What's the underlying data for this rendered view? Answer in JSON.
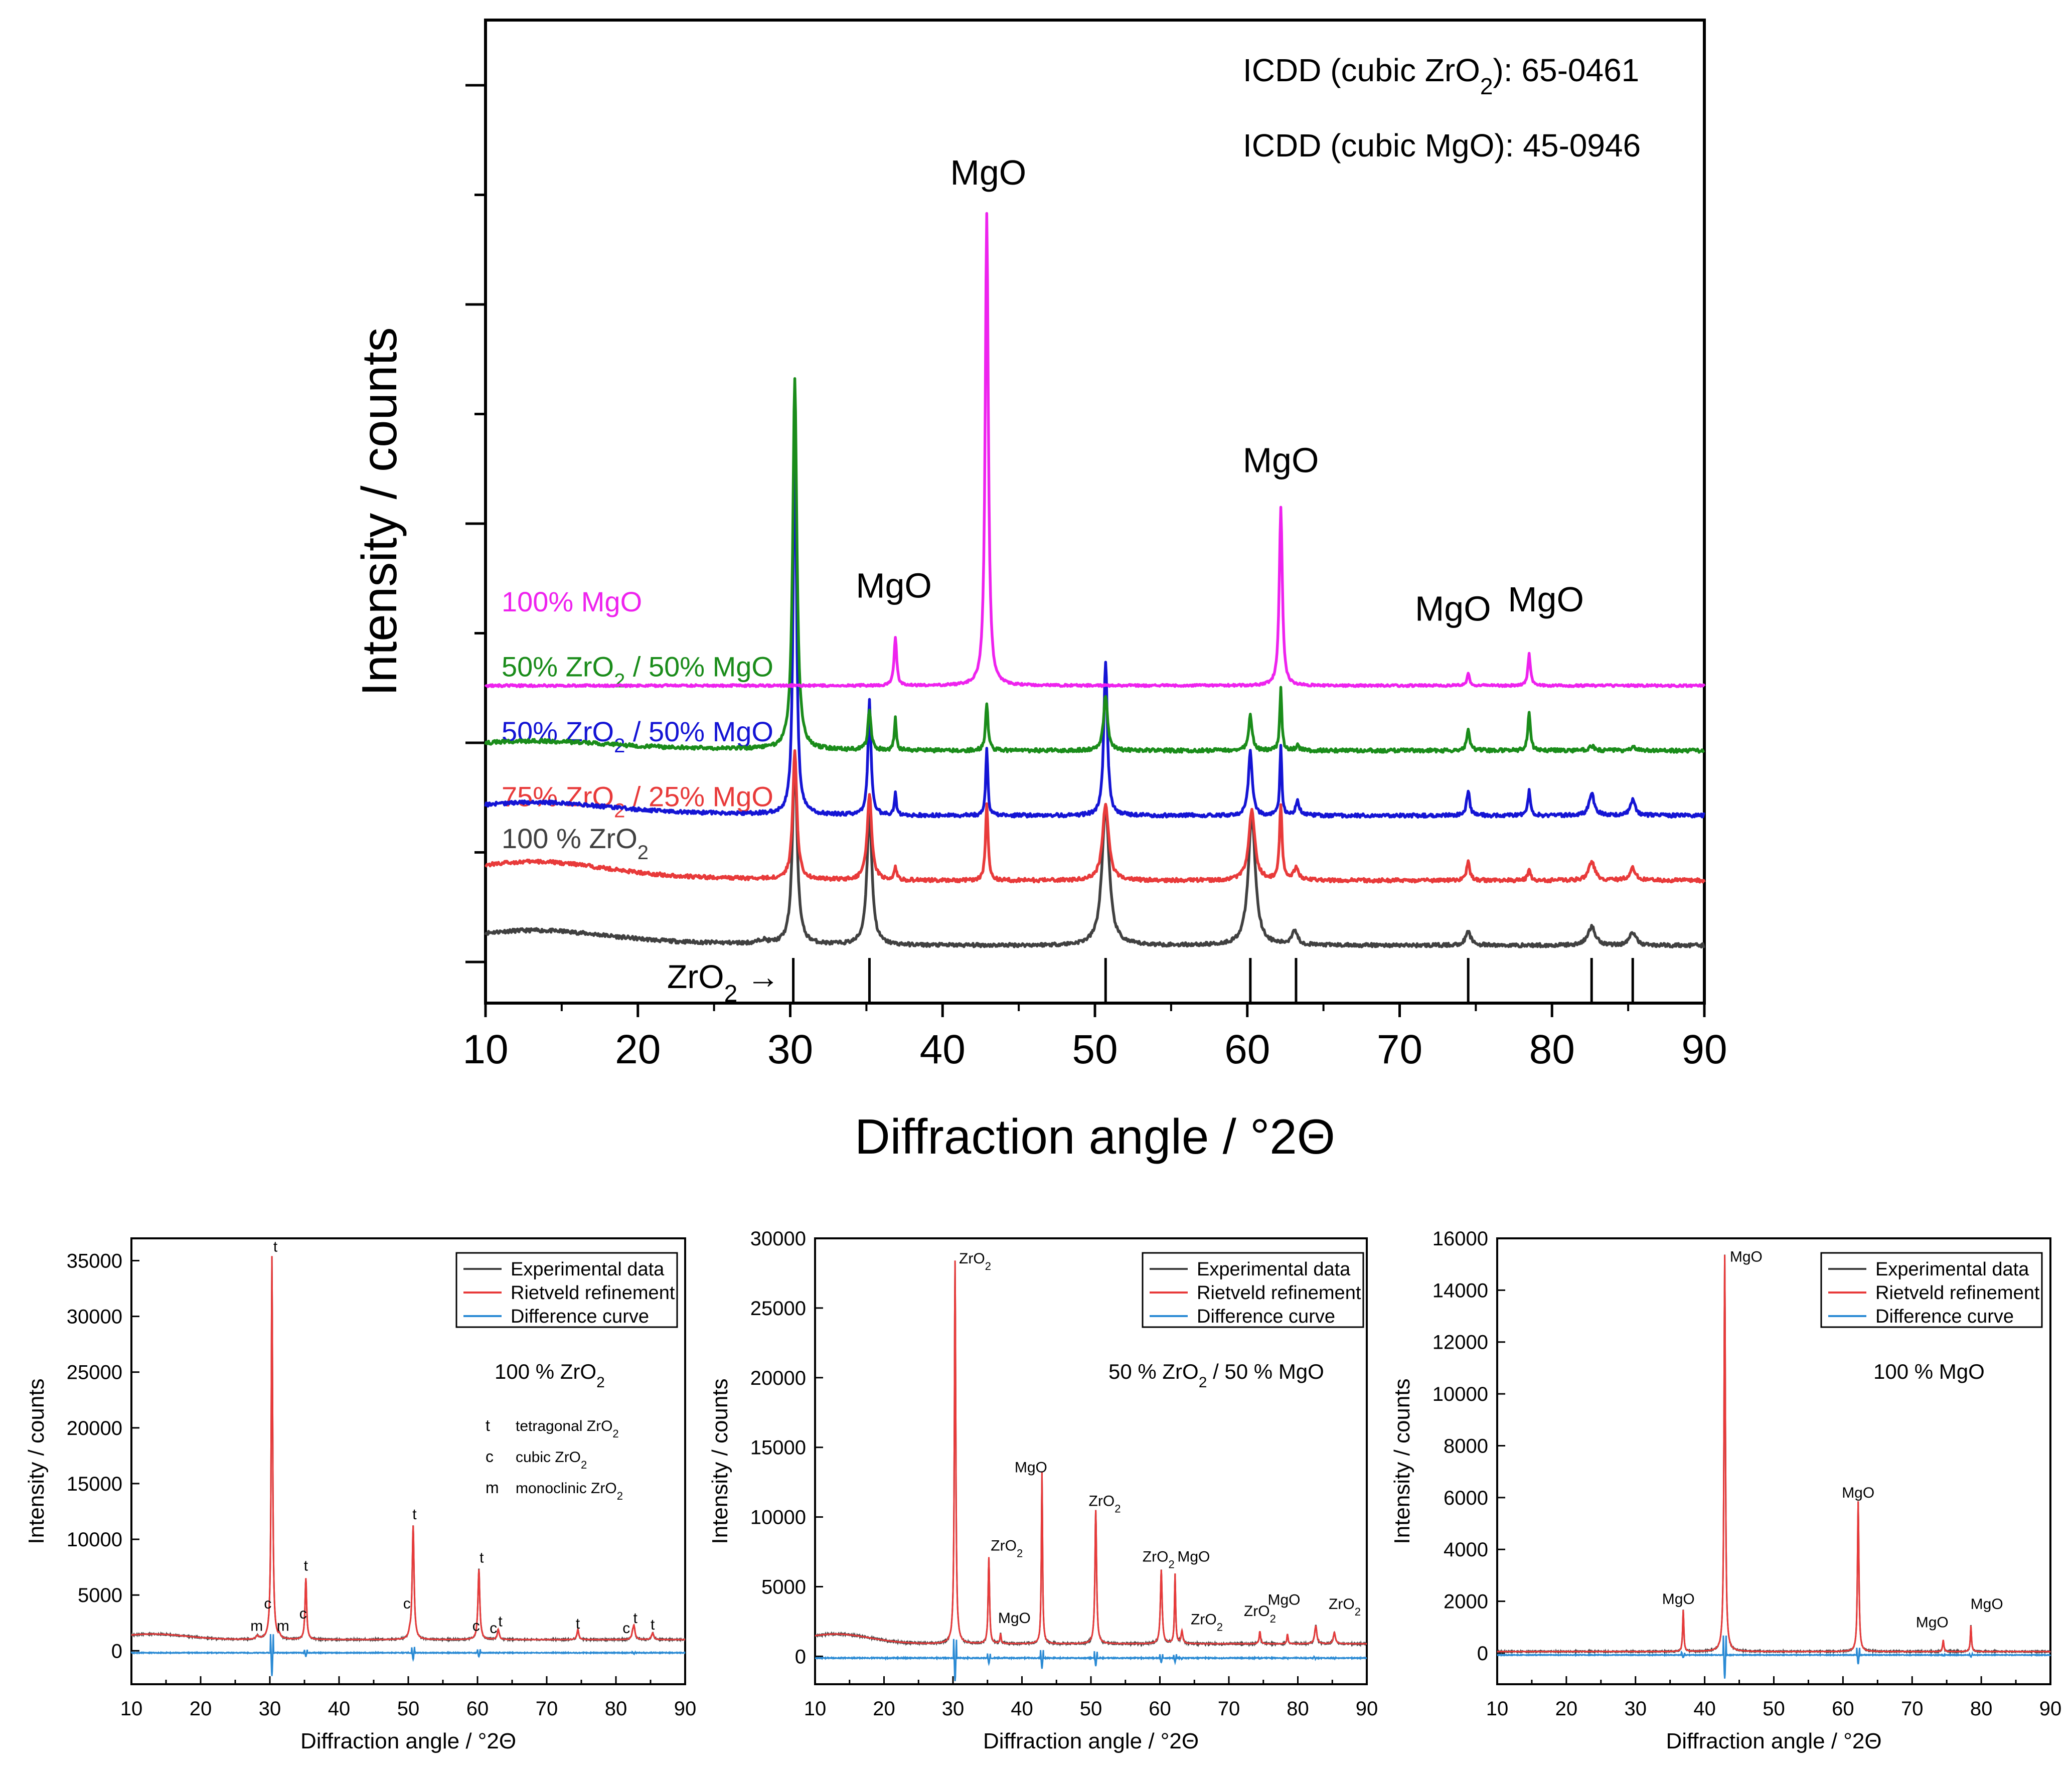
{
  "chart_data": [
    {
      "type": "line",
      "panel": "main",
      "title": "",
      "xlabel": "Diffraction angle / °2Θ",
      "ylabel": "Intensity / counts",
      "xlim": [
        10,
        90
      ],
      "xticks": [
        "10",
        "20",
        "30",
        "40",
        "50",
        "60",
        "70",
        "80",
        "90"
      ],
      "y_tick_labels_shown": false,
      "grid": false,
      "database_notes": [
        {
          "pre": "ICDD (cubic ZrO",
          "sub": "2",
          "post": "): 65-0461"
        },
        {
          "pre": "ICDD (cubic MgO):  45-0946",
          "sub": "",
          "post": ""
        }
      ],
      "reference_marker": {
        "label": "ZrO",
        "sub": "2",
        "arrow": "→",
        "positions": [
          30.2,
          35.2,
          50.7,
          60.2,
          63.2,
          74.5,
          82.6,
          85.3
        ]
      },
      "series": [
        {
          "name": "100 % ZrO",
          "sub": "2",
          "post": "",
          "color": "#404040",
          "baseline": 0,
          "label_y": 1.05,
          "hump": 0.16,
          "noise": 0.02,
          "peaks": [
            [
              28.2,
              0.04,
              0.3
            ],
            [
              30.3,
              2.03,
              0.18
            ],
            [
              35.2,
              1.42,
              0.2
            ],
            [
              50.7,
              1.51,
              0.28
            ],
            [
              60.3,
              1.39,
              0.28
            ],
            [
              63.1,
              0.16,
              0.22
            ],
            [
              74.5,
              0.14,
              0.22
            ],
            [
              82.6,
              0.2,
              0.3
            ],
            [
              85.3,
              0.14,
              0.25
            ]
          ]
        },
        {
          "name": "75% ZrO",
          "sub": "2",
          "post": " / 25% MgO",
          "color": "#e83a3a",
          "baseline": 0.7,
          "label_y": 1.5,
          "hump": 0.2,
          "noise": 0.02,
          "peaks": [
            [
              30.3,
              1.4,
              0.16
            ],
            [
              35.2,
              0.92,
              0.18
            ],
            [
              36.9,
              0.13,
              0.1
            ],
            [
              42.9,
              0.82,
              0.1
            ],
            [
              50.7,
              0.82,
              0.24
            ],
            [
              60.3,
              0.76,
              0.24
            ],
            [
              62.2,
              0.82,
              0.1
            ],
            [
              63.2,
              0.13,
              0.18
            ],
            [
              74.5,
              0.22,
              0.12
            ],
            [
              78.5,
              0.13,
              0.1
            ],
            [
              82.6,
              0.2,
              0.25
            ],
            [
              85.3,
              0.13,
              0.25
            ]
          ]
        },
        {
          "name": "50% ZrO",
          "sub": "2",
          "post": " / 50% MgO",
          "color": "#1414d4",
          "baseline": 1.4,
          "label_y": 2.2,
          "hump": 0.14,
          "noise": 0.02,
          "peaks": [
            [
              30.3,
              4.47,
              0.12
            ],
            [
              35.2,
              1.23,
              0.12
            ],
            [
              36.9,
              0.23,
              0.08
            ],
            [
              42.9,
              0.74,
              0.08
            ],
            [
              50.7,
              1.66,
              0.14
            ],
            [
              60.2,
              0.69,
              0.15
            ],
            [
              62.2,
              0.74,
              0.08
            ],
            [
              63.3,
              0.15,
              0.15
            ],
            [
              74.5,
              0.27,
              0.12
            ],
            [
              78.5,
              0.27,
              0.1
            ],
            [
              82.6,
              0.24,
              0.2
            ],
            [
              85.3,
              0.17,
              0.2
            ]
          ]
        },
        {
          "name": "50% ZrO",
          "sub": "2",
          "post": " / 50% MgO",
          "color": "#1a8c1a",
          "baseline": 2.1,
          "label_y": 2.9,
          "hump": 0.1,
          "noise": 0.02,
          "peaks": [
            [
              30.3,
              4.0,
              0.16
            ],
            [
              35.2,
              0.44,
              0.12
            ],
            [
              36.9,
              0.34,
              0.08
            ],
            [
              42.9,
              0.5,
              0.1
            ],
            [
              50.7,
              0.6,
              0.16
            ],
            [
              60.2,
              0.38,
              0.14
            ],
            [
              62.2,
              0.68,
              0.08
            ],
            [
              63.3,
              0.05,
              0.15
            ],
            [
              74.5,
              0.24,
              0.12
            ],
            [
              78.5,
              0.42,
              0.1
            ],
            [
              82.6,
              0.05,
              0.2
            ],
            [
              85.3,
              0.04,
              0.2
            ]
          ]
        },
        {
          "name": "100% MgO",
          "sub": "",
          "post": "",
          "color": "#ee22ee",
          "baseline": 2.8,
          "label_y": 3.6,
          "hump": 0.0,
          "noise": 0.012,
          "peaks": [
            [
              36.9,
              0.53,
              0.1
            ],
            [
              42.9,
              5.1,
              0.12
            ],
            [
              62.2,
              1.93,
              0.12
            ],
            [
              74.5,
              0.14,
              0.1
            ],
            [
              78.5,
              0.34,
              0.1
            ]
          ]
        }
      ],
      "peak_labels": [
        {
          "text": "MgO",
          "x": 43.0,
          "y": 8.2
        },
        {
          "text": "MgO",
          "x": 62.2,
          "y": 5.1
        },
        {
          "text": "MgO",
          "x": 36.8,
          "y": 3.75
        },
        {
          "text": "MgO",
          "x": 73.5,
          "y": 3.5
        },
        {
          "text": "MgO",
          "x": 79.6,
          "y": 3.6
        }
      ]
    },
    {
      "type": "line",
      "panel": "100 % ZrO2",
      "title": "",
      "xlabel": "Diffraction angle / °2Θ",
      "ylabel": "Intensity / counts",
      "xlim": [
        10,
        90
      ],
      "ylim": [
        -3000,
        37000
      ],
      "xticks": [
        "10",
        "20",
        "30",
        "40",
        "50",
        "60",
        "70",
        "80",
        "90"
      ],
      "yticks": [
        "0",
        "5000",
        "10000",
        "15000",
        "20000",
        "25000",
        "30000",
        "35000"
      ],
      "legend": [
        "Experimental data",
        "Rietveld refinement",
        "Difference curve"
      ],
      "legend_colors": [
        "#404040",
        "#e83a3a",
        "#2a8ad4"
      ],
      "sample_label": {
        "pre": "100 % ZrO",
        "sub": "2",
        "post": ""
      },
      "phase_key": [
        {
          "sym": "t",
          "pre": "tetragonal ZrO",
          "sub": "2"
        },
        {
          "sym": "c",
          "pre": "cubic ZrO",
          "sub": "2"
        },
        {
          "sym": "m",
          "pre": "monoclinic ZrO",
          "sub": "2"
        }
      ],
      "background": 1000,
      "hump": 500,
      "peaks": [
        [
          28.2,
          300,
          0.2
        ],
        [
          30.3,
          34400,
          0.12
        ],
        [
          31.4,
          250,
          0.15
        ],
        [
          35.2,
          5500,
          0.14
        ],
        [
          50.2,
          400,
          0.15
        ],
        [
          50.7,
          10200,
          0.16
        ],
        [
          60.2,
          6300,
          0.16
        ],
        [
          63.0,
          900,
          0.16
        ],
        [
          74.5,
          900,
          0.16
        ],
        [
          82.4,
          300,
          0.15
        ],
        [
          82.6,
          1200,
          0.18
        ],
        [
          85.3,
          600,
          0.18
        ]
      ],
      "annotations": [
        {
          "text": "t",
          "x": 30.8,
          "y": 35800
        },
        {
          "text": "t",
          "x": 35.2,
          "y": 7200
        },
        {
          "text": "t",
          "x": 50.9,
          "y": 11800
        },
        {
          "text": "t",
          "x": 60.6,
          "y": 7900
        },
        {
          "text": "t",
          "x": 63.3,
          "y": 2200
        },
        {
          "text": "t",
          "x": 74.5,
          "y": 2000
        },
        {
          "text": "t",
          "x": 82.8,
          "y": 2500
        },
        {
          "text": "t",
          "x": 85.3,
          "y": 1900
        },
        {
          "text": "c",
          "x": 29.7,
          "y": 3800
        },
        {
          "text": "c",
          "x": 34.8,
          "y": 2900
        },
        {
          "text": "c",
          "x": 49.8,
          "y": 3800
        },
        {
          "text": "c",
          "x": 59.8,
          "y": 1800
        },
        {
          "text": "c",
          "x": 62.3,
          "y": 1600
        },
        {
          "text": "c",
          "x": 81.5,
          "y": 1600
        },
        {
          "text": "m",
          "x": 28.1,
          "y": 1800
        },
        {
          "text": "m",
          "x": 31.9,
          "y": 1800
        }
      ]
    },
    {
      "type": "line",
      "panel": "50 % ZrO2 / 50 % MgO",
      "title": "",
      "xlabel": "Diffraction angle / °2Θ",
      "ylabel": "Intensity / counts",
      "xlim": [
        10,
        90
      ],
      "ylim": [
        -2000,
        30000
      ],
      "xticks": [
        "10",
        "20",
        "30",
        "40",
        "50",
        "60",
        "70",
        "80",
        "90"
      ],
      "yticks": [
        "0",
        "5000",
        "10000",
        "15000",
        "20000",
        "25000",
        "30000"
      ],
      "legend": [
        "Experimental data",
        "Rietveld refinement",
        "Difference curve"
      ],
      "legend_colors": [
        "#404040",
        "#e83a3a",
        "#2a8ad4"
      ],
      "sample_label": {
        "pre": "50 % ZrO",
        "sub": "2",
        "post": " / 50 % MgO"
      },
      "background": 900,
      "hump": 700,
      "peaks": [
        [
          30.3,
          27500,
          0.12
        ],
        [
          35.2,
          6200,
          0.12
        ],
        [
          36.9,
          700,
          0.1
        ],
        [
          42.9,
          12300,
          0.1
        ],
        [
          50.7,
          9600,
          0.14
        ],
        [
          60.2,
          5300,
          0.15
        ],
        [
          62.2,
          5000,
          0.1
        ],
        [
          63.2,
          900,
          0.15
        ],
        [
          74.5,
          900,
          0.12
        ],
        [
          78.5,
          700,
          0.1
        ],
        [
          82.6,
          1300,
          0.18
        ],
        [
          85.3,
          800,
          0.18
        ]
      ],
      "annotations": [
        {
          "text": "ZrO",
          "sub": "2",
          "x": 33.2,
          "y": 28200
        },
        {
          "text": "ZrO",
          "sub": "2",
          "x": 37.8,
          "y": 7600
        },
        {
          "text": "MgO",
          "x": 38.9,
          "y": 2400
        },
        {
          "text": "MgO",
          "x": 41.3,
          "y": 13200
        },
        {
          "text": "ZrO",
          "sub": "2",
          "x": 52.0,
          "y": 10800
        },
        {
          "text": "ZrO",
          "sub": "2",
          "x": 59.8,
          "y": 6800
        },
        {
          "text": "MgO",
          "x": 64.9,
          "y": 6800
        },
        {
          "text": "ZrO",
          "sub": "2",
          "x": 66.8,
          "y": 2300
        },
        {
          "text": "ZrO",
          "sub": "2",
          "x": 74.5,
          "y": 2900
        },
        {
          "text": "MgO",
          "x": 78.0,
          "y": 3700
        },
        {
          "text": "ZrO",
          "sub": "2",
          "x": 86.8,
          "y": 3400
        }
      ]
    },
    {
      "type": "line",
      "panel": "100 % MgO",
      "title": "",
      "xlabel": "Diffraction angle / °2Θ",
      "ylabel": "Intensity / counts",
      "xlim": [
        10,
        90
      ],
      "ylim": [
        -1200,
        16000
      ],
      "xticks": [
        "10",
        "20",
        "30",
        "40",
        "50",
        "60",
        "70",
        "80",
        "90"
      ],
      "yticks": [
        "0",
        "2000",
        "4000",
        "6000",
        "8000",
        "10000",
        "12000",
        "14000",
        "16000"
      ],
      "legend": [
        "Experimental data",
        "Rietveld refinement",
        "Difference curve"
      ],
      "legend_colors": [
        "#404040",
        "#e83a3a",
        "#2a8ad4"
      ],
      "sample_label": {
        "pre": "100 % MgO",
        "sub": "",
        "post": ""
      },
      "background": 60,
      "hump": 0,
      "peaks": [
        [
          36.9,
          1600,
          0.1
        ],
        [
          42.9,
          15300,
          0.12
        ],
        [
          62.2,
          5800,
          0.12
        ],
        [
          74.5,
          450,
          0.1
        ],
        [
          78.5,
          1000,
          0.1
        ]
      ],
      "annotations": [
        {
          "text": "MgO",
          "x": 36.2,
          "y": 1900
        },
        {
          "text": "MgO",
          "x": 46.0,
          "y": 15100
        },
        {
          "text": "MgO",
          "x": 62.2,
          "y": 6000
        },
        {
          "text": "MgO",
          "x": 72.9,
          "y": 1000
        },
        {
          "text": "MgO",
          "x": 80.8,
          "y": 1700
        }
      ]
    }
  ]
}
